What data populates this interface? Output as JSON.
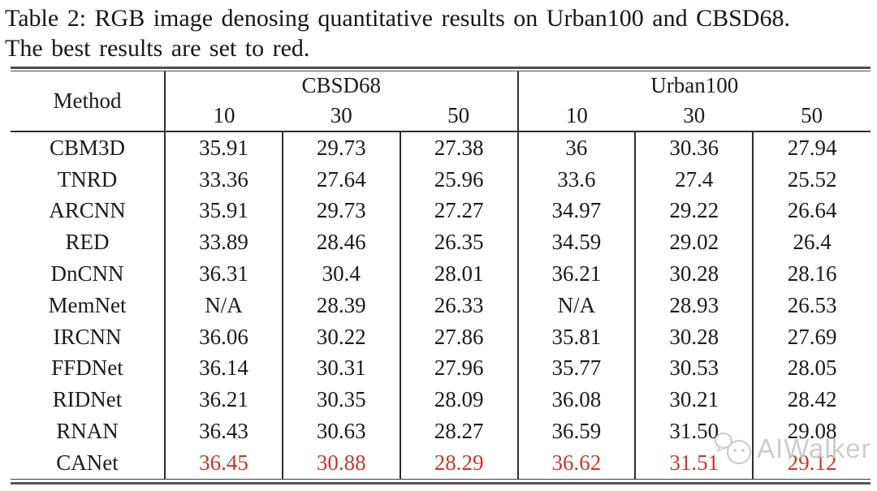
{
  "caption": {
    "line1": "Table 2: RGB image denosing quantitative results on Urban100 and CBSD68.",
    "line2": "The best results are set to red."
  },
  "table": {
    "method_header": "Method",
    "groups": [
      {
        "label": "CBSD68",
        "levels": [
          "10",
          "30",
          "50"
        ]
      },
      {
        "label": "Urban100",
        "levels": [
          "10",
          "30",
          "50"
        ]
      }
    ],
    "rows": [
      {
        "method": "CBM3D",
        "values": [
          "35.91",
          "29.73",
          "27.38",
          "36",
          "30.36",
          "27.94"
        ],
        "best": false
      },
      {
        "method": "TNRD",
        "values": [
          "33.36",
          "27.64",
          "25.96",
          "33.6",
          "27.4",
          "25.52"
        ],
        "best": false
      },
      {
        "method": "ARCNN",
        "values": [
          "35.91",
          "29.73",
          "27.27",
          "34.97",
          "29.22",
          "26.64"
        ],
        "best": false
      },
      {
        "method": "RED",
        "values": [
          "33.89",
          "28.46",
          "26.35",
          "34.59",
          "29.02",
          "26.4"
        ],
        "best": false
      },
      {
        "method": "DnCNN",
        "values": [
          "36.31",
          "30.4",
          "28.01",
          "36.21",
          "30.28",
          "28.16"
        ],
        "best": false
      },
      {
        "method": "MemNet",
        "values": [
          "N/A",
          "28.39",
          "26.33",
          "N/A",
          "28.93",
          "26.53"
        ],
        "best": false
      },
      {
        "method": "IRCNN",
        "values": [
          "36.06",
          "30.22",
          "27.86",
          "35.81",
          "30.28",
          "27.69"
        ],
        "best": false
      },
      {
        "method": "FFDNet",
        "values": [
          "36.14",
          "30.31",
          "27.96",
          "35.77",
          "30.53",
          "28.05"
        ],
        "best": false
      },
      {
        "method": "RIDNet",
        "values": [
          "36.21",
          "30.35",
          "28.09",
          "36.08",
          "30.21",
          "28.42"
        ],
        "best": false
      },
      {
        "method": "RNAN",
        "values": [
          "36.43",
          "30.63",
          "28.27",
          "36.59",
          "31.50",
          "29.08"
        ],
        "best": false
      },
      {
        "method": "CANet",
        "values": [
          "36.45",
          "30.88",
          "28.29",
          "36.62",
          "31.51",
          "29.12"
        ],
        "best": true
      }
    ]
  },
  "watermark": {
    "text": "AIWalker",
    "icon": "speech-bubble-logo"
  },
  "colors": {
    "best_value": "#d0342c",
    "rule": "#4e4e4e",
    "text": "#1b1b1b"
  }
}
